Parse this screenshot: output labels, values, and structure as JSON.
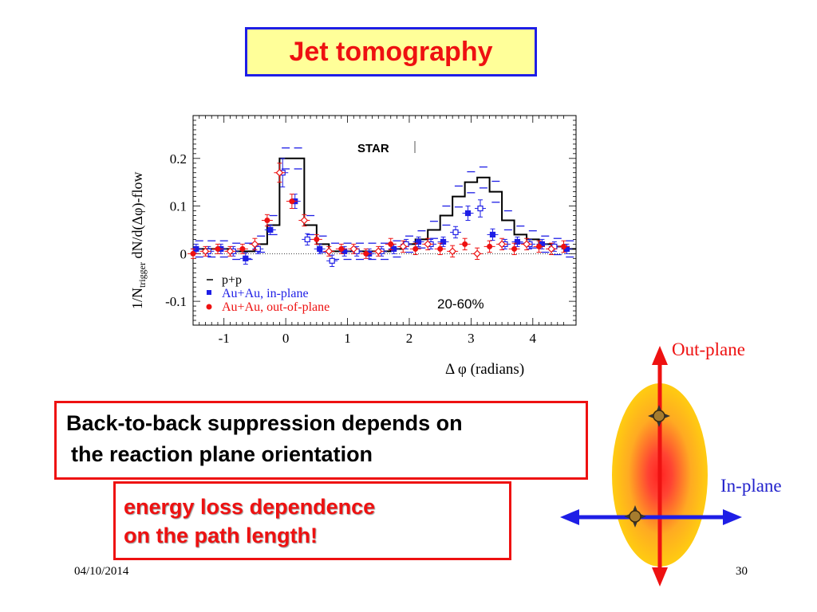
{
  "slide": {
    "title": "Jet tomography",
    "statement_line1": "Back-to-back suppression depends on",
    "statement_line2": "the reaction plane orientation",
    "conclusion_line1": "energy loss dependence",
    "conclusion_line2": "on the path length!",
    "date": "04/10/2014",
    "page_number": "30"
  },
  "diagram": {
    "out_plane_label": "Out-plane",
    "in_plane_label": "In-plane",
    "colors": {
      "label": "#ee1111",
      "in_plane_label": "#2222cc",
      "vertical_arrow": "#ee1111",
      "horizontal_arrow": "#1e1ee6",
      "ellipse_outer": "#ffcc11",
      "ellipse_core": "#ff3333"
    }
  },
  "chart_data": {
    "type": "scatter",
    "xlabel": "Δ φ (radians)",
    "ylabel": "1/N_trigger dN/d(Δφ)-flow",
    "xlim": [
      -1.5,
      4.7
    ],
    "ylim": [
      -0.15,
      0.29
    ],
    "x_ticks": [
      "-1",
      "0",
      "1",
      "2",
      "3",
      "4"
    ],
    "y_ticks": [
      "-0.1",
      "0",
      "0.1",
      "0.2"
    ],
    "experiment_label": "STAR",
    "centrality_label": "20-60%",
    "zero_line": true,
    "legend_position": "bottom-left",
    "series": [
      {
        "name": "p+p",
        "style": "histogram",
        "color": "#000000",
        "x": [
          -1.4,
          -1.2,
          -1.0,
          -0.8,
          -0.6,
          -0.4,
          -0.2,
          0.0,
          0.2,
          0.4,
          0.6,
          0.8,
          1.0,
          1.2,
          1.4,
          1.6,
          1.8,
          2.0,
          2.2,
          2.4,
          2.6,
          2.8,
          3.0,
          3.2,
          3.4,
          3.6,
          3.8,
          4.0,
          4.2,
          4.4,
          4.6
        ],
        "y": [
          0.01,
          0.01,
          0.01,
          0.005,
          0.005,
          0.02,
          0.06,
          0.2,
          0.2,
          0.06,
          0.02,
          0.005,
          0.005,
          0.005,
          0.005,
          0.005,
          0.01,
          0.02,
          0.03,
          0.05,
          0.08,
          0.12,
          0.15,
          0.16,
          0.13,
          0.07,
          0.04,
          0.03,
          0.02,
          0.015,
          0.01
        ],
        "errors": [
          0.005,
          0.005,
          0.005,
          0.005,
          0.005,
          0.005,
          0.008,
          0.01,
          0.01,
          0.008,
          0.005,
          0.005,
          0.005,
          0.005,
          0.005,
          0.005,
          0.005,
          0.005,
          0.006,
          0.006,
          0.008,
          0.01,
          0.01,
          0.01,
          0.01,
          0.008,
          0.006,
          0.006,
          0.005,
          0.005,
          0.005
        ]
      },
      {
        "name": "Au+Au, in-plane",
        "color": "#1e1ee6",
        "x": [
          -1.45,
          -1.25,
          -1.05,
          -0.85,
          -0.65,
          -0.45,
          -0.25,
          -0.05,
          0.15,
          0.35,
          0.55,
          0.75,
          0.95,
          1.15,
          1.35,
          1.55,
          1.75,
          1.95,
          2.15,
          2.35,
          2.55,
          2.75,
          2.95,
          3.15,
          3.35,
          3.55,
          3.75,
          3.95,
          4.15,
          4.35,
          4.55
        ],
        "y": [
          0.01,
          0.005,
          0.01,
          0.005,
          -0.01,
          0.01,
          0.05,
          0.17,
          0.11,
          0.03,
          0.01,
          -0.015,
          0.005,
          0.005,
          0.0,
          0.005,
          0.01,
          0.02,
          0.025,
          0.02,
          0.025,
          0.045,
          0.085,
          0.095,
          0.04,
          0.02,
          0.025,
          0.02,
          0.02,
          0.015,
          0.01
        ],
        "errors": [
          0.01,
          0.01,
          0.01,
          0.01,
          0.012,
          0.01,
          0.01,
          0.03,
          0.015,
          0.012,
          0.01,
          0.012,
          0.01,
          0.01,
          0.01,
          0.01,
          0.01,
          0.01,
          0.01,
          0.01,
          0.01,
          0.012,
          0.015,
          0.018,
          0.012,
          0.01,
          0.01,
          0.01,
          0.01,
          0.01,
          0.01
        ]
      },
      {
        "name": "Au+Au, out-of-plane",
        "color": "#ee1111",
        "x": [
          -1.5,
          -1.3,
          -1.1,
          -0.9,
          -0.7,
          -0.5,
          -0.3,
          -0.1,
          0.1,
          0.3,
          0.5,
          0.7,
          0.9,
          1.1,
          1.3,
          1.5,
          1.7,
          1.9,
          2.1,
          2.3,
          2.5,
          2.7,
          2.9,
          3.1,
          3.3,
          3.5,
          3.7,
          3.9,
          4.1,
          4.3,
          4.5
        ],
        "y": [
          0.0,
          0.005,
          0.01,
          0.005,
          0.01,
          0.02,
          0.07,
          0.17,
          0.11,
          0.07,
          0.03,
          0.005,
          0.01,
          0.01,
          0.0,
          0.005,
          0.02,
          0.015,
          0.01,
          0.02,
          0.01,
          0.005,
          0.02,
          0.0,
          0.015,
          0.02,
          0.01,
          0.02,
          0.015,
          0.01,
          0.015
        ],
        "errors": [
          0.01,
          0.01,
          0.01,
          0.01,
          0.01,
          0.012,
          0.012,
          0.02,
          0.015,
          0.012,
          0.01,
          0.01,
          0.01,
          0.01,
          0.01,
          0.01,
          0.012,
          0.012,
          0.012,
          0.012,
          0.012,
          0.012,
          0.012,
          0.012,
          0.012,
          0.012,
          0.012,
          0.012,
          0.012,
          0.012,
          0.012
        ]
      }
    ]
  }
}
